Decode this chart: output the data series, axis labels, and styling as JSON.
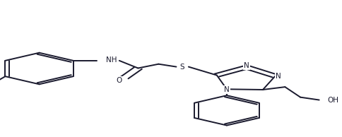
{
  "figsize": [
    4.84,
    1.94
  ],
  "dpi": 100,
  "bg_color": "#ffffff",
  "line_color": "#1a1a2e",
  "line_width": 1.4,
  "font_size": 7.5,
  "atoms": {
    "NH": "NH",
    "O": "O",
    "S": "S",
    "N1": "N",
    "N2": "N",
    "N3": "N",
    "OH": "OH"
  }
}
